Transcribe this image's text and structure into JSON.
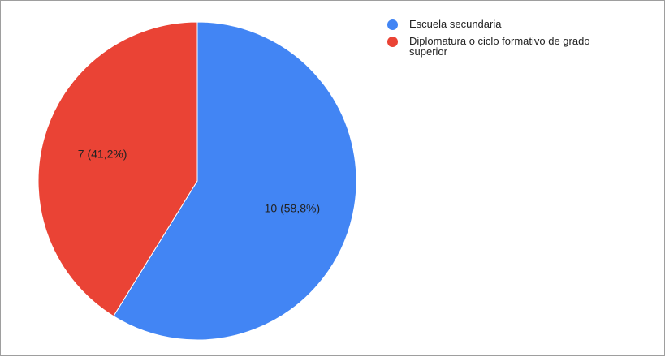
{
  "chart_data": {
    "type": "pie",
    "title": "",
    "slices": [
      {
        "label": "Escuela secundaria",
        "value": 10,
        "percent": 58.8,
        "data_label": "10 (58,8%)",
        "color": "#4285f4"
      },
      {
        "label": "Diplomatura o ciclo formativo de grado superior",
        "value": 7,
        "percent": 41.2,
        "data_label": "7 (41,2%)",
        "color": "#ea4335"
      }
    ],
    "legend_position": "right"
  }
}
